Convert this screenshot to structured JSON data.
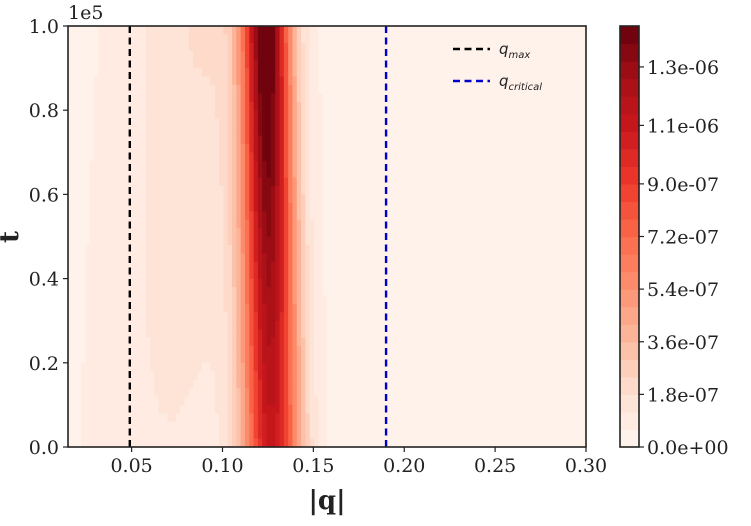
{
  "chart_data": {
    "type": "heatmap",
    "subtype": "filled-contour",
    "xlabel": "|q|",
    "ylabel": "t",
    "xlim": [
      0.015,
      0.3
    ],
    "ylim": [
      0,
      100000
    ],
    "y_multiplier_label": "1e5",
    "x_ticks": [
      0.05,
      0.1,
      0.15,
      0.2,
      0.25,
      0.3
    ],
    "x_tick_labels": [
      "0.05",
      "0.10",
      "0.15",
      "0.20",
      "0.25",
      "0.30"
    ],
    "y_ticks": [
      0,
      20000,
      40000,
      60000,
      80000,
      100000
    ],
    "y_tick_labels": [
      "0.0",
      "0.2",
      "0.4",
      "0.6",
      "0.8",
      "1.0"
    ],
    "colorbar": {
      "range": [
        0,
        1.44e-06
      ],
      "levels": 24,
      "ticks": [
        0,
        1.8e-07,
        3.6e-07,
        5.4e-07,
        7.2e-07,
        9e-07,
        1.1e-06,
        1.3e-06
      ],
      "tick_labels": [
        "0.0e+00",
        "1.8e-07",
        "3.6e-07",
        "5.4e-07",
        "7.2e-07",
        "9.0e-07",
        "1.1e-06",
        "1.3e-06"
      ],
      "colormap": "Reds",
      "colormap_stops": [
        "#fff5f0",
        "#fee0d2",
        "#fcbba1",
        "#fc9272",
        "#fb6a4a",
        "#ef3b2c",
        "#cb181d",
        "#a50f15",
        "#67000d"
      ]
    },
    "peak": {
      "center_q_at_t0": 0.127,
      "center_q_at_tmax": 0.124,
      "amplitude_at_t0": 1.05e-06,
      "amplitude_at_tmax": 1.44e-06,
      "width_q_at_t0": 0.011,
      "width_q_at_tmax": 0.009
    },
    "vlines": [
      {
        "name": "q_max",
        "x": 0.049,
        "color": "#000000",
        "style": "dashed"
      },
      {
        "name": "q_critical",
        "x": 0.19,
        "color": "#0000cc",
        "style": "dashed"
      }
    ],
    "legend": {
      "placement": "top-right",
      "entries": [
        {
          "symbol": "q",
          "subscript": "max",
          "color": "#000000"
        },
        {
          "symbol": "q",
          "subscript": "critical",
          "color": "#0000cc"
        }
      ]
    }
  }
}
